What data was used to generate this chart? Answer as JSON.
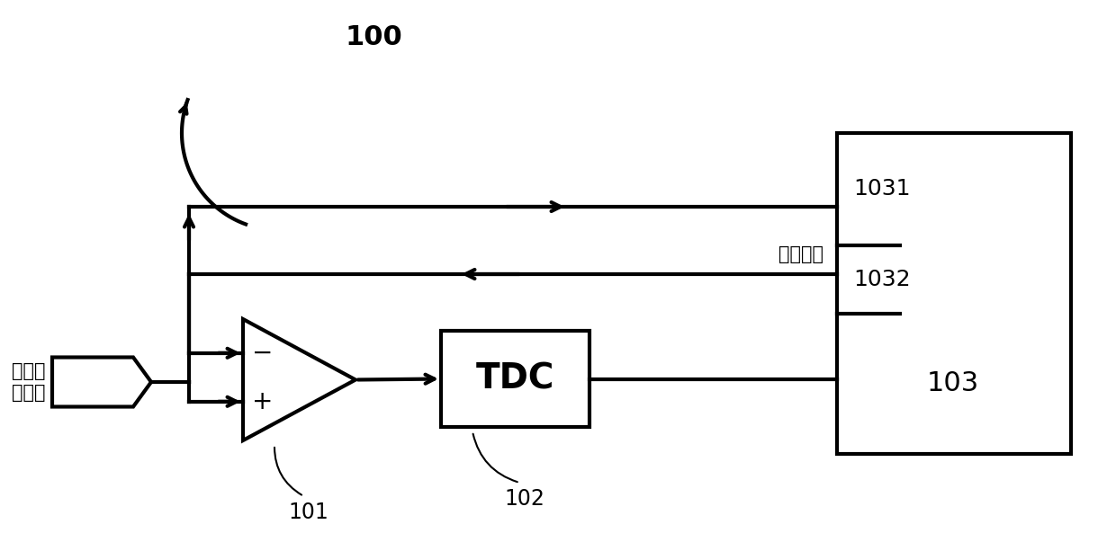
{
  "title_label_100": "100",
  "label_101": "101",
  "label_102": "102",
  "label_1031": "1031",
  "label_1032": "1032",
  "label_103": "103",
  "label_tdc": "TDC",
  "label_input": "外部输\n入信号",
  "label_threshold": "探测阈値",
  "bg_color": "#ffffff",
  "line_color": "#000000",
  "line_width": 3.0
}
